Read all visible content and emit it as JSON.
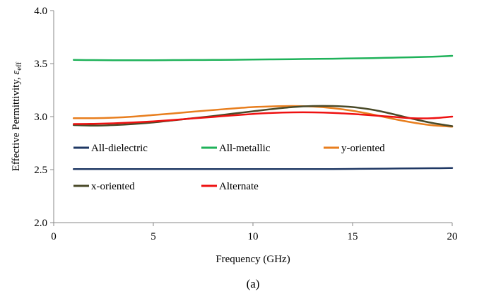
{
  "chart_data": {
    "type": "line",
    "caption": "(a)",
    "xlabel": "Frequency (GHz)",
    "ylabel": "Effective Permittivity, ",
    "ylabel_symbol": "ε",
    "ylabel_subscript": "eff",
    "xlim": [
      0,
      20
    ],
    "ylim": [
      2.0,
      4.0
    ],
    "xticks": [
      0,
      5,
      10,
      15,
      20
    ],
    "yticks": [
      2.0,
      2.5,
      3.0,
      3.5,
      4.0
    ],
    "xtick_labels": [
      "0",
      "5",
      "10",
      "15",
      "20"
    ],
    "ytick_labels": [
      "2.0",
      "2.5",
      "3.0",
      "3.5",
      "4.0"
    ],
    "grid": false,
    "legend_placement": "inside-center",
    "x": [
      1,
      2,
      3,
      4,
      5,
      6,
      7,
      8,
      9,
      10,
      11,
      12,
      13,
      14,
      15,
      16,
      17,
      18,
      19,
      20
    ],
    "series": [
      {
        "name": "All-dielectric",
        "color": "#1f3864",
        "values": [
          2.505,
          2.505,
          2.505,
          2.505,
          2.505,
          2.505,
          2.505,
          2.505,
          2.505,
          2.505,
          2.505,
          2.505,
          2.505,
          2.505,
          2.507,
          2.508,
          2.51,
          2.512,
          2.513,
          2.515
        ]
      },
      {
        "name": "All-metallic",
        "color": "#1fb25a",
        "values": [
          3.535,
          3.533,
          3.532,
          3.532,
          3.532,
          3.533,
          3.534,
          3.535,
          3.536,
          3.538,
          3.54,
          3.542,
          3.544,
          3.546,
          3.549,
          3.552,
          3.556,
          3.56,
          3.565,
          3.573
        ]
      },
      {
        "name": "y-oriented",
        "color": "#e87e1e",
        "values": [
          2.985,
          2.985,
          2.99,
          3.0,
          3.015,
          3.03,
          3.047,
          3.062,
          3.077,
          3.09,
          3.097,
          3.1,
          3.095,
          3.08,
          3.055,
          3.02,
          2.98,
          2.945,
          2.918,
          2.905
        ]
      },
      {
        "name": "x-oriented",
        "color": "#4a4a28",
        "values": [
          2.92,
          2.915,
          2.92,
          2.93,
          2.945,
          2.965,
          2.985,
          3.005,
          3.028,
          3.05,
          3.072,
          3.09,
          3.1,
          3.1,
          3.09,
          3.065,
          3.025,
          2.98,
          2.94,
          2.91
        ]
      },
      {
        "name": "Alternate",
        "color": "#ee1111",
        "values": [
          2.93,
          2.932,
          2.937,
          2.945,
          2.955,
          2.968,
          2.983,
          2.997,
          3.012,
          3.025,
          3.035,
          3.04,
          3.04,
          3.035,
          3.025,
          3.012,
          2.998,
          2.985,
          2.985,
          3.0
        ]
      }
    ]
  }
}
